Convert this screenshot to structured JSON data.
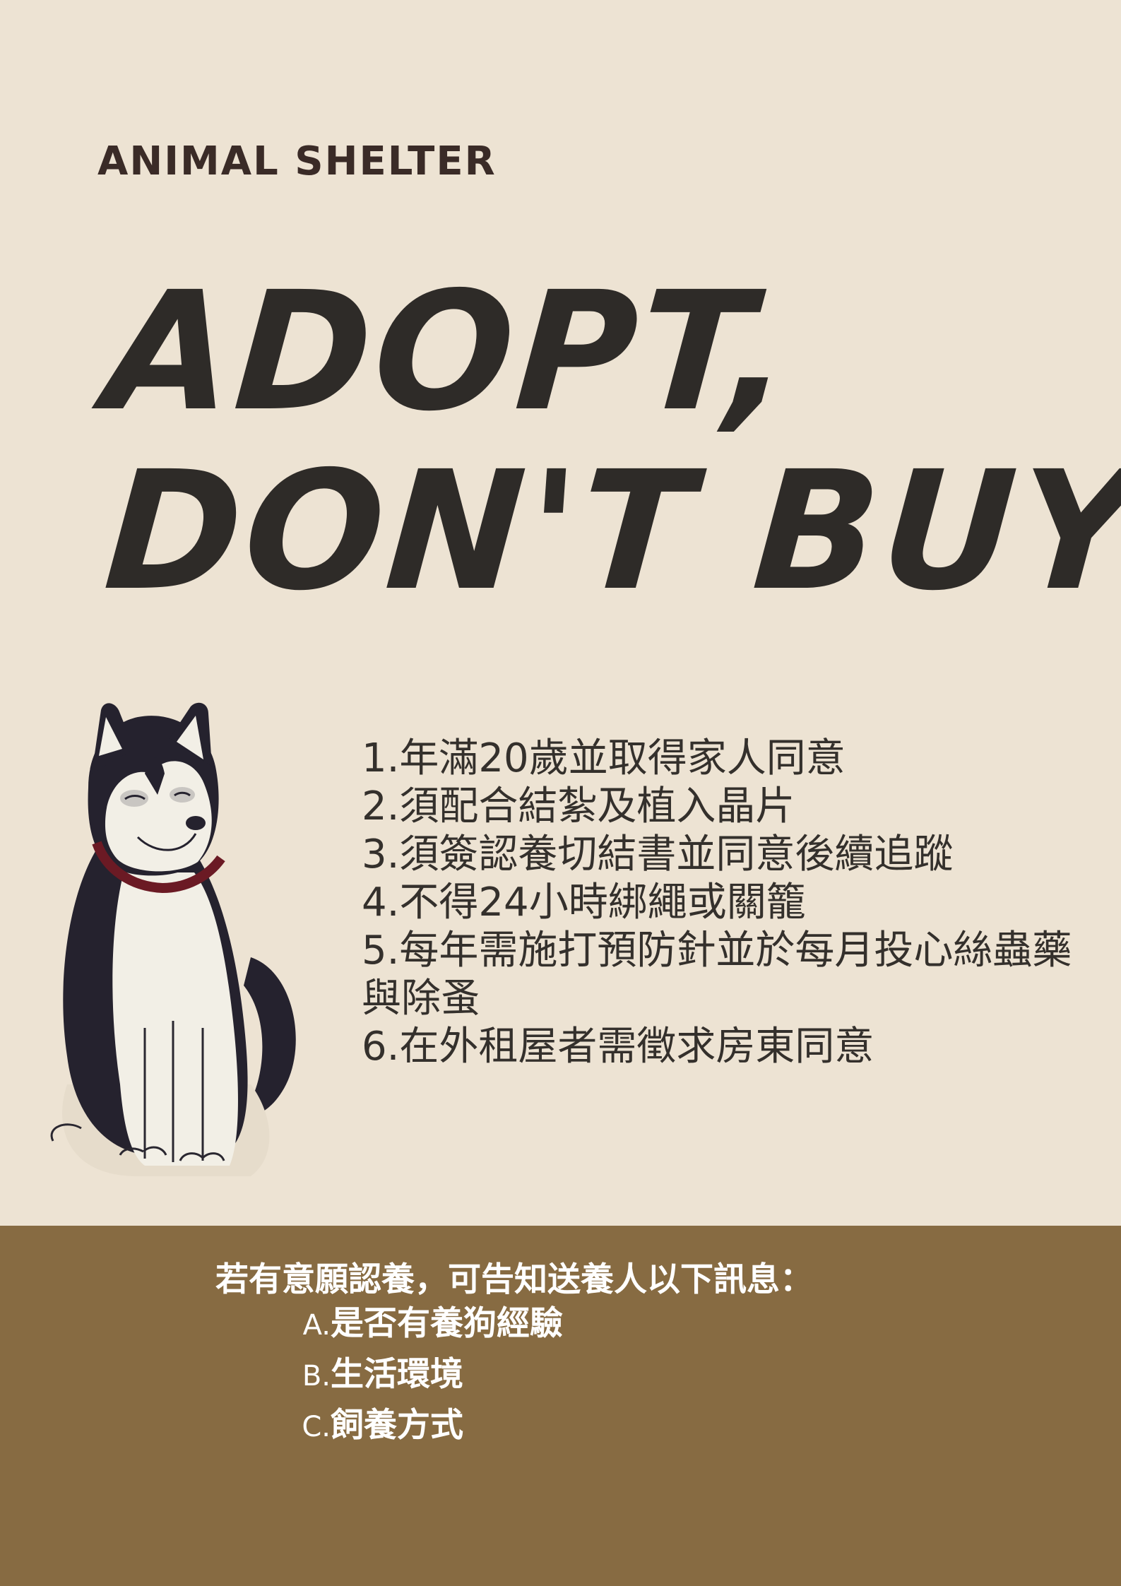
{
  "header": {
    "org_name": "ANIMAL SHELTER"
  },
  "headline": {
    "line1": "ADOPT,",
    "line2": "DON'T BUY"
  },
  "rules": [
    "1.年滿20歲並取得家人同意",
    "2.須配合結紮及植入晶片",
    "3.須簽認養切結書並同意後續追蹤",
    "4.不得24小時綁繩或關籠",
    "5.每年需施打預防針並於每月投心絲蟲藥與除蚤",
    "6.在外租屋者需徵求房東同意"
  ],
  "info": {
    "heading": "若有意願認養，可告知送養人以下訊息：",
    "items": [
      {
        "letter": "A.",
        "text": "是否有養狗經驗"
      },
      {
        "letter": "B.",
        "text": "生活環境"
      },
      {
        "letter": "C.",
        "text": "飼養方式"
      }
    ]
  },
  "colors": {
    "background": "#ede3d3",
    "band": "#876b42",
    "headline": "#2e2b28",
    "org_name": "#3a2b27",
    "collar": "#6b1a24",
    "dog_dark": "#25222e"
  },
  "illustration": {
    "icon": "husky-dog-icon"
  }
}
